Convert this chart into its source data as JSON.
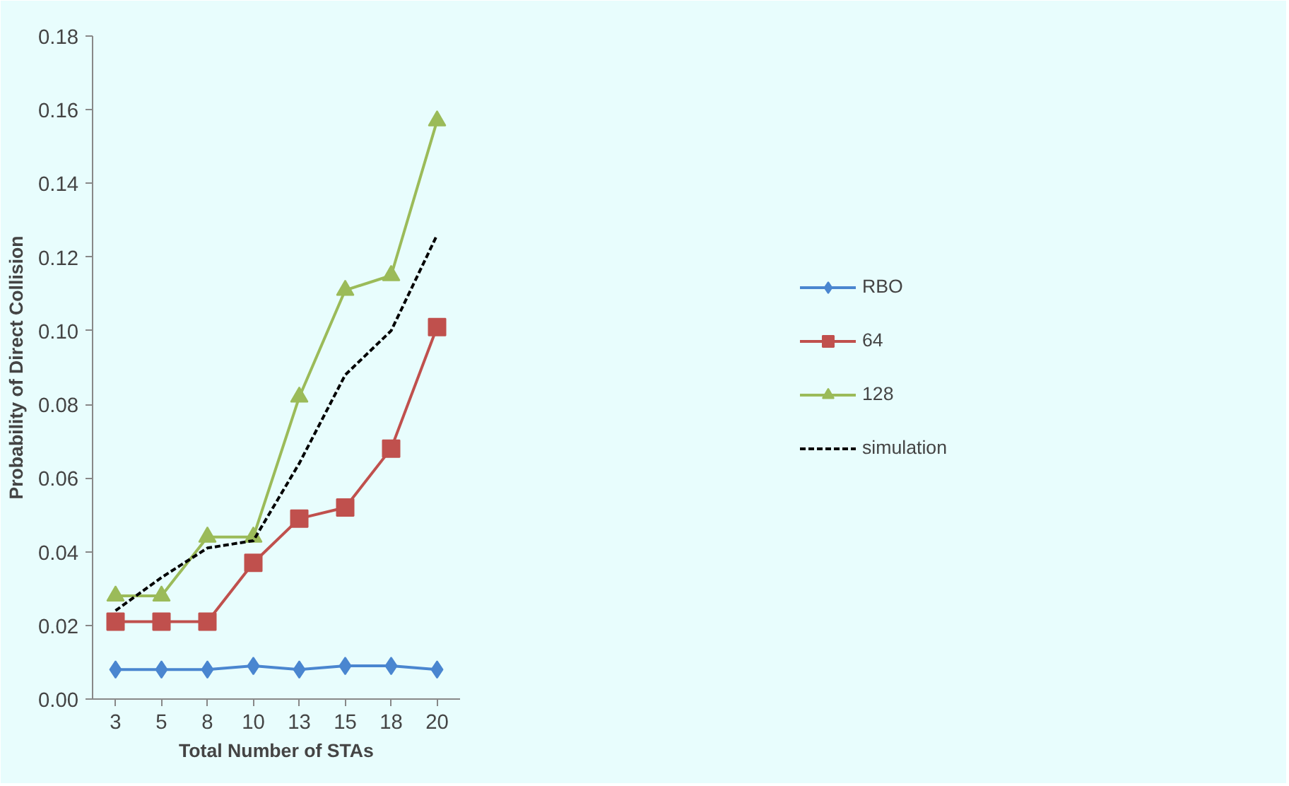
{
  "chart_data": {
    "type": "line",
    "xlabel": "Total Number of STAs",
    "ylabel": "Probability of Direct Collision",
    "categories": [
      "3",
      "5",
      "8",
      "10",
      "13",
      "15",
      "18",
      "20"
    ],
    "series": [
      {
        "name": "RBO",
        "color": "#4a86d0",
        "marker": "diamond",
        "line_style": "solid",
        "values": [
          0.008,
          0.008,
          0.008,
          0.009,
          0.008,
          0.009,
          0.009,
          0.008
        ]
      },
      {
        "name": "64",
        "color": "#c0504d",
        "marker": "square",
        "line_style": "solid",
        "values": [
          0.021,
          0.021,
          0.021,
          0.037,
          0.049,
          0.052,
          0.068,
          0.101
        ]
      },
      {
        "name": "128",
        "color": "#9bbb59",
        "marker": "triangle",
        "line_style": "solid",
        "values": [
          0.028,
          0.028,
          0.044,
          0.044,
          0.082,
          0.111,
          0.115,
          0.157
        ]
      },
      {
        "name": "simulation",
        "color": "#000000",
        "marker": "none",
        "line_style": "dashed",
        "values": [
          0.024,
          0.033,
          0.041,
          0.043,
          0.064,
          0.088,
          0.1,
          0.126
        ]
      }
    ],
    "ylim": [
      0,
      0.18
    ],
    "yticks": [
      {
        "value": 0,
        "label": "0.00"
      },
      {
        "value": 0.02,
        "label": "0.02"
      },
      {
        "value": 0.04,
        "label": "0.04"
      },
      {
        "value": 0.06,
        "label": "0.06"
      },
      {
        "value": 0.08,
        "label": "0.08"
      },
      {
        "value": 0.1,
        "label": "0.10"
      },
      {
        "value": 0.12,
        "label": "0.12"
      },
      {
        "value": 0.14,
        "label": "0.14"
      },
      {
        "value": 0.16,
        "label": "0.16"
      },
      {
        "value": 0.18,
        "label": "0.18"
      }
    ],
    "grid": false,
    "legend": "right"
  }
}
